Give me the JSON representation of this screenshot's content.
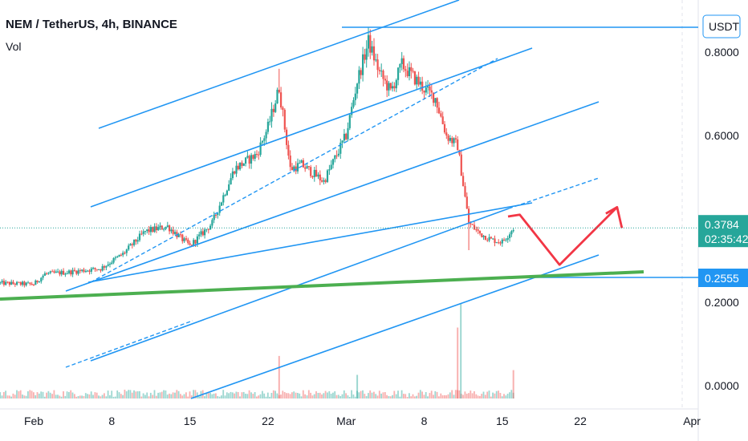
{
  "header": {
    "title": "NEM / TetherUS, 4h, BINANCE",
    "volume_label": "Vol"
  },
  "price_axis": {
    "currency_button": "USDT",
    "ticks": [
      {
        "label": "0.8000",
        "value": 0.8
      },
      {
        "label": "0.6000",
        "value": 0.6
      },
      {
        "label": "0.2000",
        "value": 0.2
      },
      {
        "label": "0.0000",
        "value": 0.0
      }
    ],
    "current_price_label": "0.3784",
    "countdown_label": "02:35:42",
    "support_label": "0.2555"
  },
  "time_axis": {
    "ticks": [
      {
        "label": "Feb",
        "date": "2021-02-01"
      },
      {
        "label": "8",
        "date": "2021-02-08"
      },
      {
        "label": "15",
        "date": "2021-02-15"
      },
      {
        "label": "22",
        "date": "2021-02-22"
      },
      {
        "label": "Mar",
        "date": "2021-03-01"
      },
      {
        "label": "8",
        "date": "2021-03-08"
      },
      {
        "label": "15",
        "date": "2021-03-15"
      },
      {
        "label": "22",
        "date": "2021-03-22"
      },
      {
        "label": "Apr",
        "date": "2021-04-01"
      }
    ]
  },
  "colors": {
    "up": "#26a69a",
    "down": "#ef5350",
    "channel": "#2196f3",
    "support_line": "#4caf50",
    "projection": "#f23645",
    "price_badge": "#2196f3",
    "current_badge": "#26a69a",
    "axis_text": "#131722"
  },
  "chart_data": {
    "type": "candlestick",
    "symbol": "NEM / TetherUS",
    "interval": "4h",
    "exchange": "BINANCE",
    "current_price": 0.3784,
    "marked_price_levels": [
      0.8695,
      0.2555
    ],
    "price_path": [
      {
        "date": "2021-01-29",
        "price": 0.246
      },
      {
        "date": "2021-02-01",
        "price": 0.243
      },
      {
        "date": "2021-02-02",
        "price": 0.268
      },
      {
        "date": "2021-02-04",
        "price": 0.272
      },
      {
        "date": "2021-02-07",
        "price": 0.281
      },
      {
        "date": "2021-02-09",
        "price": 0.316
      },
      {
        "date": "2021-02-11",
        "price": 0.37
      },
      {
        "date": "2021-02-13",
        "price": 0.382
      },
      {
        "date": "2021-02-15",
        "price": 0.335
      },
      {
        "date": "2021-02-17",
        "price": 0.39
      },
      {
        "date": "2021-02-19",
        "price": 0.52
      },
      {
        "date": "2021-02-21",
        "price": 0.555
      },
      {
        "date": "2021-02-22",
        "price": 0.62
      },
      {
        "date": "2021-02-23",
        "price": 0.715
      },
      {
        "date": "2021-02-24",
        "price": 0.52
      },
      {
        "date": "2021-02-25",
        "price": 0.53
      },
      {
        "date": "2021-02-27",
        "price": 0.49
      },
      {
        "date": "2021-03-01",
        "price": 0.6
      },
      {
        "date": "2021-03-02",
        "price": 0.73
      },
      {
        "date": "2021-03-03",
        "price": 0.825
      },
      {
        "date": "2021-03-04",
        "price": 0.75
      },
      {
        "date": "2021-03-05",
        "price": 0.705
      },
      {
        "date": "2021-03-06",
        "price": 0.77
      },
      {
        "date": "2021-03-08",
        "price": 0.712
      },
      {
        "date": "2021-03-09",
        "price": 0.69
      },
      {
        "date": "2021-03-10",
        "price": 0.6
      },
      {
        "date": "2021-03-11",
        "price": 0.575
      },
      {
        "date": "2021-03-12",
        "price": 0.39
      },
      {
        "date": "2021-03-13",
        "price": 0.365
      },
      {
        "date": "2021-03-14",
        "price": 0.35
      },
      {
        "date": "2021-03-15",
        "price": 0.345
      },
      {
        "date": "2021-03-16",
        "price": 0.378
      }
    ],
    "volume_spikes": [
      {
        "date": "2021-02-23",
        "level": 0.45
      },
      {
        "date": "2021-03-02",
        "level": 0.25
      },
      {
        "date": "2021-03-11",
        "level": 0.75
      },
      {
        "date": "2021-03-11",
        "level": 1.0
      },
      {
        "date": "2021-03-16",
        "level": 0.3
      }
    ],
    "drawings": {
      "ascending_channels": 3,
      "horizontal_resistance": 0.8695,
      "horizontal_support": 0.2555,
      "green_trendline": true,
      "projection": [
        "2021-03-17",
        "2021-03-21",
        "2021-03-24"
      ]
    },
    "xlabel": "",
    "ylabel": "",
    "grid": false,
    "legend": "none"
  }
}
